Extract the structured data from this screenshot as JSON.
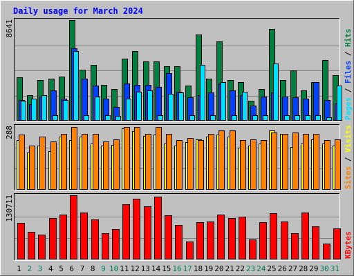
{
  "chart_data": {
    "type": "bar",
    "title": "Daily usage for March 2024",
    "days": [
      "1",
      "2",
      "3",
      "4",
      "5",
      "6",
      "7",
      "8",
      "9",
      "10",
      "11",
      "12",
      "13",
      "14",
      "15",
      "16",
      "17",
      "18",
      "19",
      "20",
      "21",
      "22",
      "23",
      "24",
      "25",
      "26",
      "27",
      "28",
      "29",
      "30",
      "31"
    ],
    "weekend_days": [
      "2",
      "3",
      "9",
      "10",
      "16",
      "17",
      "23",
      "24",
      "30",
      "31"
    ],
    "panels": [
      {
        "id": "hits-panel",
        "max_label": "8641",
        "ymax": 8641,
        "legend": [
          "Pages",
          "Files",
          "Hits"
        ],
        "series": [
          {
            "name": "Hits",
            "color": "#008040",
            "values": [
              3700,
              2200,
              3500,
              3600,
              3800,
              8641,
              4400,
              4800,
              3100,
              2700,
              5300,
              6000,
              5100,
              5100,
              4700,
              4700,
              3000,
              7400,
              3600,
              6800,
              3500,
              3300,
              1700,
              2700,
              7900,
              3500,
              4300,
              2600,
              3300,
              5200,
              3900
            ]
          },
          {
            "name": "Files",
            "color": "#0040ff",
            "values": [
              1800,
              1400,
              2100,
              2600,
              1900,
              6200,
              3600,
              3000,
              1900,
              1200,
              3200,
              3100,
              3100,
              2900,
              4100,
              2500,
              2000,
              2200,
              2400,
              3200,
              2600,
              2200,
              1300,
              2100,
              2400,
              2100,
              2000,
              1900,
              3300,
              1800,
              1500
            ]
          },
          {
            "name": "Pages",
            "color": "#00e0ff",
            "values": [
              1700,
              1900,
              2200,
              500,
              1800,
              6000,
              500,
              2100,
              500,
              400,
              1900,
              2500,
              2600,
              500,
              2300,
              2400,
              500,
              4800,
              500,
              3300,
              500,
              2500,
              500,
              500,
              4900,
              500,
              500,
              500,
              500,
              300,
              3000
            ]
          }
        ]
      },
      {
        "id": "visits-panel",
        "max_label": "288",
        "ymax": 288,
        "legend": [
          "Sites",
          "Visits"
        ],
        "series": [
          {
            "name": "Visits",
            "color": "#ffff00",
            "values": [
              225,
              170,
              200,
              175,
              240,
              225,
              240,
              210,
              200,
              205,
              280,
              265,
              245,
              250,
              210,
              200,
              215,
              230,
              240,
              250,
              240,
              190,
              200,
              210,
              270,
              255,
              195,
              210,
              230,
              210,
              200
            ]
          },
          {
            "name": "Sites",
            "color": "#ff8000",
            "values": [
              250,
              200,
              240,
              220,
              255,
              285,
              255,
              255,
              220,
              230,
              285,
              285,
              255,
              285,
              255,
              225,
              235,
              225,
              255,
              270,
              270,
              225,
              230,
              225,
              260,
              255,
              260,
              255,
              255,
              225,
              230
            ]
          }
        ]
      },
      {
        "id": "kbytes-panel",
        "max_label": "130711",
        "ymax": 130711,
        "legend": [
          "KBytes"
        ],
        "series": [
          {
            "name": "KBytes",
            "color": "#ff0000",
            "values": [
              74000,
              56000,
              51000,
              85000,
              91000,
              130711,
              95000,
              81000,
              54000,
              62000,
              113000,
              124000,
              108000,
              128000,
              90000,
              70000,
              36000,
              76000,
              78000,
              92000,
              84000,
              87000,
              41000,
              76000,
              94000,
              77000,
              53000,
              96000,
              68000,
              33000,
              63000
            ]
          }
        ]
      }
    ],
    "colors": {
      "background": "#c0c0c0",
      "title": "#0000ff",
      "weekday_label": "#000000",
      "weekend_label": "#00805c",
      "grid": "#808080",
      "bar_outline": "#000000"
    }
  }
}
